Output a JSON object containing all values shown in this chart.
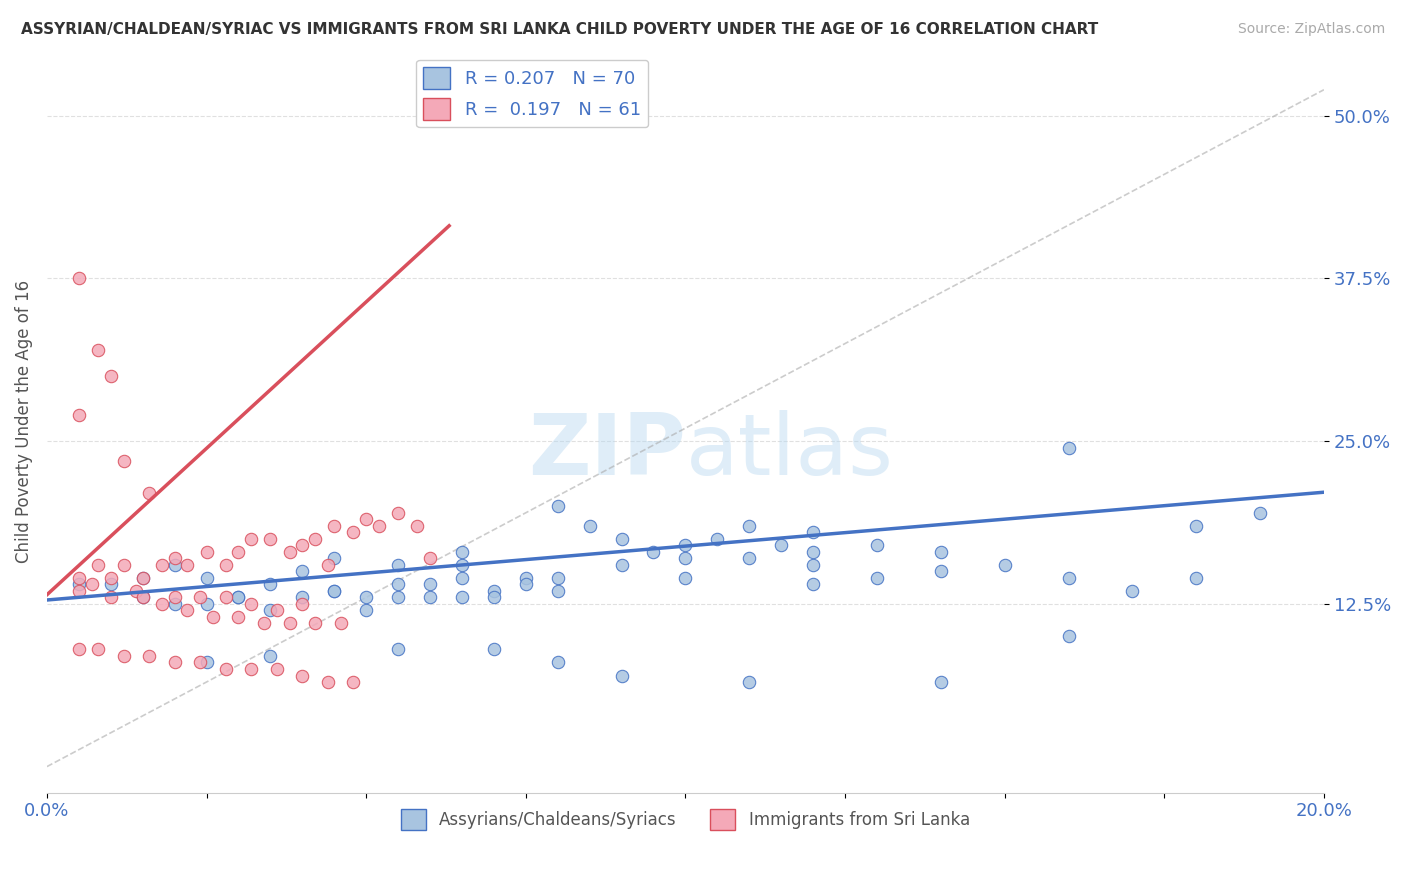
{
  "title": "ASSYRIAN/CHALDEAN/SYRIAC VS IMMIGRANTS FROM SRI LANKA CHILD POVERTY UNDER THE AGE OF 16 CORRELATION CHART",
  "source": "Source: ZipAtlas.com",
  "ylabel": "Child Poverty Under the Age of 16",
  "ytick_labels": [
    "12.5%",
    "25.0%",
    "37.5%",
    "50.0%"
  ],
  "ytick_values": [
    0.125,
    0.25,
    0.375,
    0.5
  ],
  "xlim": [
    0.0,
    0.2
  ],
  "ylim": [
    -0.02,
    0.55
  ],
  "R_blue": 0.207,
  "N_blue": 70,
  "R_pink": 0.197,
  "N_pink": 61,
  "color_blue": "#a8c4e0",
  "color_pink": "#f4a9b8",
  "line_blue": "#4472c4",
  "line_pink": "#d94f5c",
  "legend_label_blue": "Assyrians/Chaldeans/Syriacs",
  "legend_label_pink": "Immigrants from Sri Lanka",
  "watermark_zip": "ZIP",
  "watermark_atlas": "atlas",
  "blue_x": [
    0.02,
    0.025,
    0.03,
    0.035,
    0.04,
    0.045,
    0.05,
    0.055,
    0.06,
    0.065,
    0.07,
    0.075,
    0.08,
    0.085,
    0.09,
    0.095,
    0.1,
    0.105,
    0.11,
    0.115,
    0.12,
    0.13,
    0.14,
    0.15,
    0.16,
    0.17,
    0.18,
    0.19,
    0.005,
    0.01,
    0.015,
    0.055,
    0.065,
    0.045,
    0.035,
    0.025,
    0.08,
    0.09,
    0.1,
    0.11,
    0.12,
    0.065,
    0.075,
    0.055,
    0.04,
    0.03,
    0.02,
    0.015,
    0.12,
    0.13,
    0.14,
    0.08,
    0.07,
    0.06,
    0.05,
    0.12,
    0.065,
    0.045,
    0.16,
    0.18,
    0.07,
    0.055,
    0.035,
    0.025,
    0.08,
    0.09,
    0.11,
    0.14,
    0.16,
    0.1
  ],
  "blue_y": [
    0.155,
    0.145,
    0.13,
    0.14,
    0.15,
    0.16,
    0.12,
    0.13,
    0.14,
    0.155,
    0.135,
    0.145,
    0.2,
    0.185,
    0.175,
    0.165,
    0.16,
    0.175,
    0.185,
    0.17,
    0.18,
    0.17,
    0.165,
    0.155,
    0.145,
    0.135,
    0.185,
    0.195,
    0.14,
    0.14,
    0.145,
    0.155,
    0.165,
    0.135,
    0.12,
    0.125,
    0.145,
    0.155,
    0.17,
    0.16,
    0.165,
    0.13,
    0.14,
    0.14,
    0.13,
    0.13,
    0.125,
    0.13,
    0.14,
    0.145,
    0.15,
    0.135,
    0.13,
    0.13,
    0.13,
    0.155,
    0.145,
    0.135,
    0.245,
    0.145,
    0.09,
    0.09,
    0.085,
    0.08,
    0.08,
    0.07,
    0.065,
    0.065,
    0.1,
    0.145
  ],
  "pink_x": [
    0.005,
    0.007,
    0.01,
    0.012,
    0.015,
    0.018,
    0.02,
    0.022,
    0.025,
    0.028,
    0.03,
    0.032,
    0.035,
    0.038,
    0.04,
    0.042,
    0.045,
    0.048,
    0.05,
    0.052,
    0.055,
    0.058,
    0.06,
    0.005,
    0.008,
    0.012,
    0.016,
    0.02,
    0.024,
    0.028,
    0.032,
    0.036,
    0.04,
    0.044,
    0.005,
    0.008,
    0.01,
    0.014,
    0.018,
    0.022,
    0.026,
    0.03,
    0.034,
    0.038,
    0.042,
    0.046,
    0.005,
    0.008,
    0.012,
    0.016,
    0.02,
    0.024,
    0.028,
    0.032,
    0.036,
    0.04,
    0.044,
    0.048,
    0.005,
    0.01,
    0.015
  ],
  "pink_y": [
    0.145,
    0.14,
    0.145,
    0.155,
    0.145,
    0.155,
    0.16,
    0.155,
    0.165,
    0.155,
    0.165,
    0.175,
    0.175,
    0.165,
    0.17,
    0.175,
    0.185,
    0.18,
    0.19,
    0.185,
    0.195,
    0.185,
    0.16,
    0.27,
    0.155,
    0.235,
    0.21,
    0.13,
    0.13,
    0.13,
    0.125,
    0.12,
    0.125,
    0.155,
    0.375,
    0.32,
    0.3,
    0.135,
    0.125,
    0.12,
    0.115,
    0.115,
    0.11,
    0.11,
    0.11,
    0.11,
    0.09,
    0.09,
    0.085,
    0.085,
    0.08,
    0.08,
    0.075,
    0.075,
    0.075,
    0.07,
    0.065,
    0.065,
    0.135,
    0.13,
    0.13
  ]
}
